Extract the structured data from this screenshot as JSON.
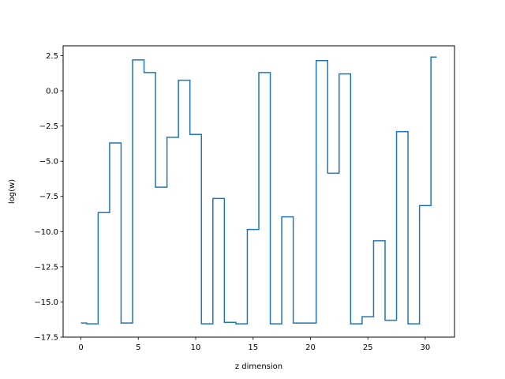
{
  "chart_data": {
    "type": "line",
    "drawstyle": "steps-mid",
    "title": "",
    "xlabel": "z dimension",
    "ylabel": "log(w)",
    "xlim": [
      -1.55,
      32.55
    ],
    "ylim": [
      -17.5,
      3.2
    ],
    "grid": false,
    "legend": "none",
    "color": "#1f77b4",
    "x_ticks": [
      0,
      5,
      10,
      15,
      20,
      25,
      30
    ],
    "x_tick_labels": [
      "0",
      "5",
      "10",
      "15",
      "20",
      "25",
      "30"
    ],
    "y_ticks": [
      2.5,
      0.0,
      -2.5,
      -5.0,
      -7.5,
      -10.0,
      -12.5,
      -15.0,
      -17.5
    ],
    "y_tick_labels": [
      "2.5",
      "0.0",
      "−2.5",
      "−5.0",
      "−7.5",
      "−10.0",
      "−12.5",
      "−15.0",
      "−17.5"
    ],
    "x": [
      0,
      1,
      2,
      3,
      4,
      5,
      6,
      7,
      8,
      9,
      10,
      11,
      12,
      13,
      14,
      15,
      16,
      17,
      18,
      19,
      20,
      21,
      22,
      23,
      24,
      25,
      26,
      27,
      28,
      29,
      30,
      31
    ],
    "y": [
      -16.5,
      -16.55,
      -8.65,
      -3.7,
      -16.5,
      2.2,
      1.3,
      -6.85,
      -3.3,
      0.75,
      -3.1,
      -16.55,
      -7.65,
      -16.45,
      -16.55,
      -9.85,
      1.3,
      -16.55,
      -8.95,
      -16.5,
      -16.5,
      2.15,
      -5.85,
      1.2,
      -16.55,
      -16.05,
      -10.65,
      -16.3,
      -2.9,
      -16.55,
      -8.15,
      2.4
    ]
  }
}
